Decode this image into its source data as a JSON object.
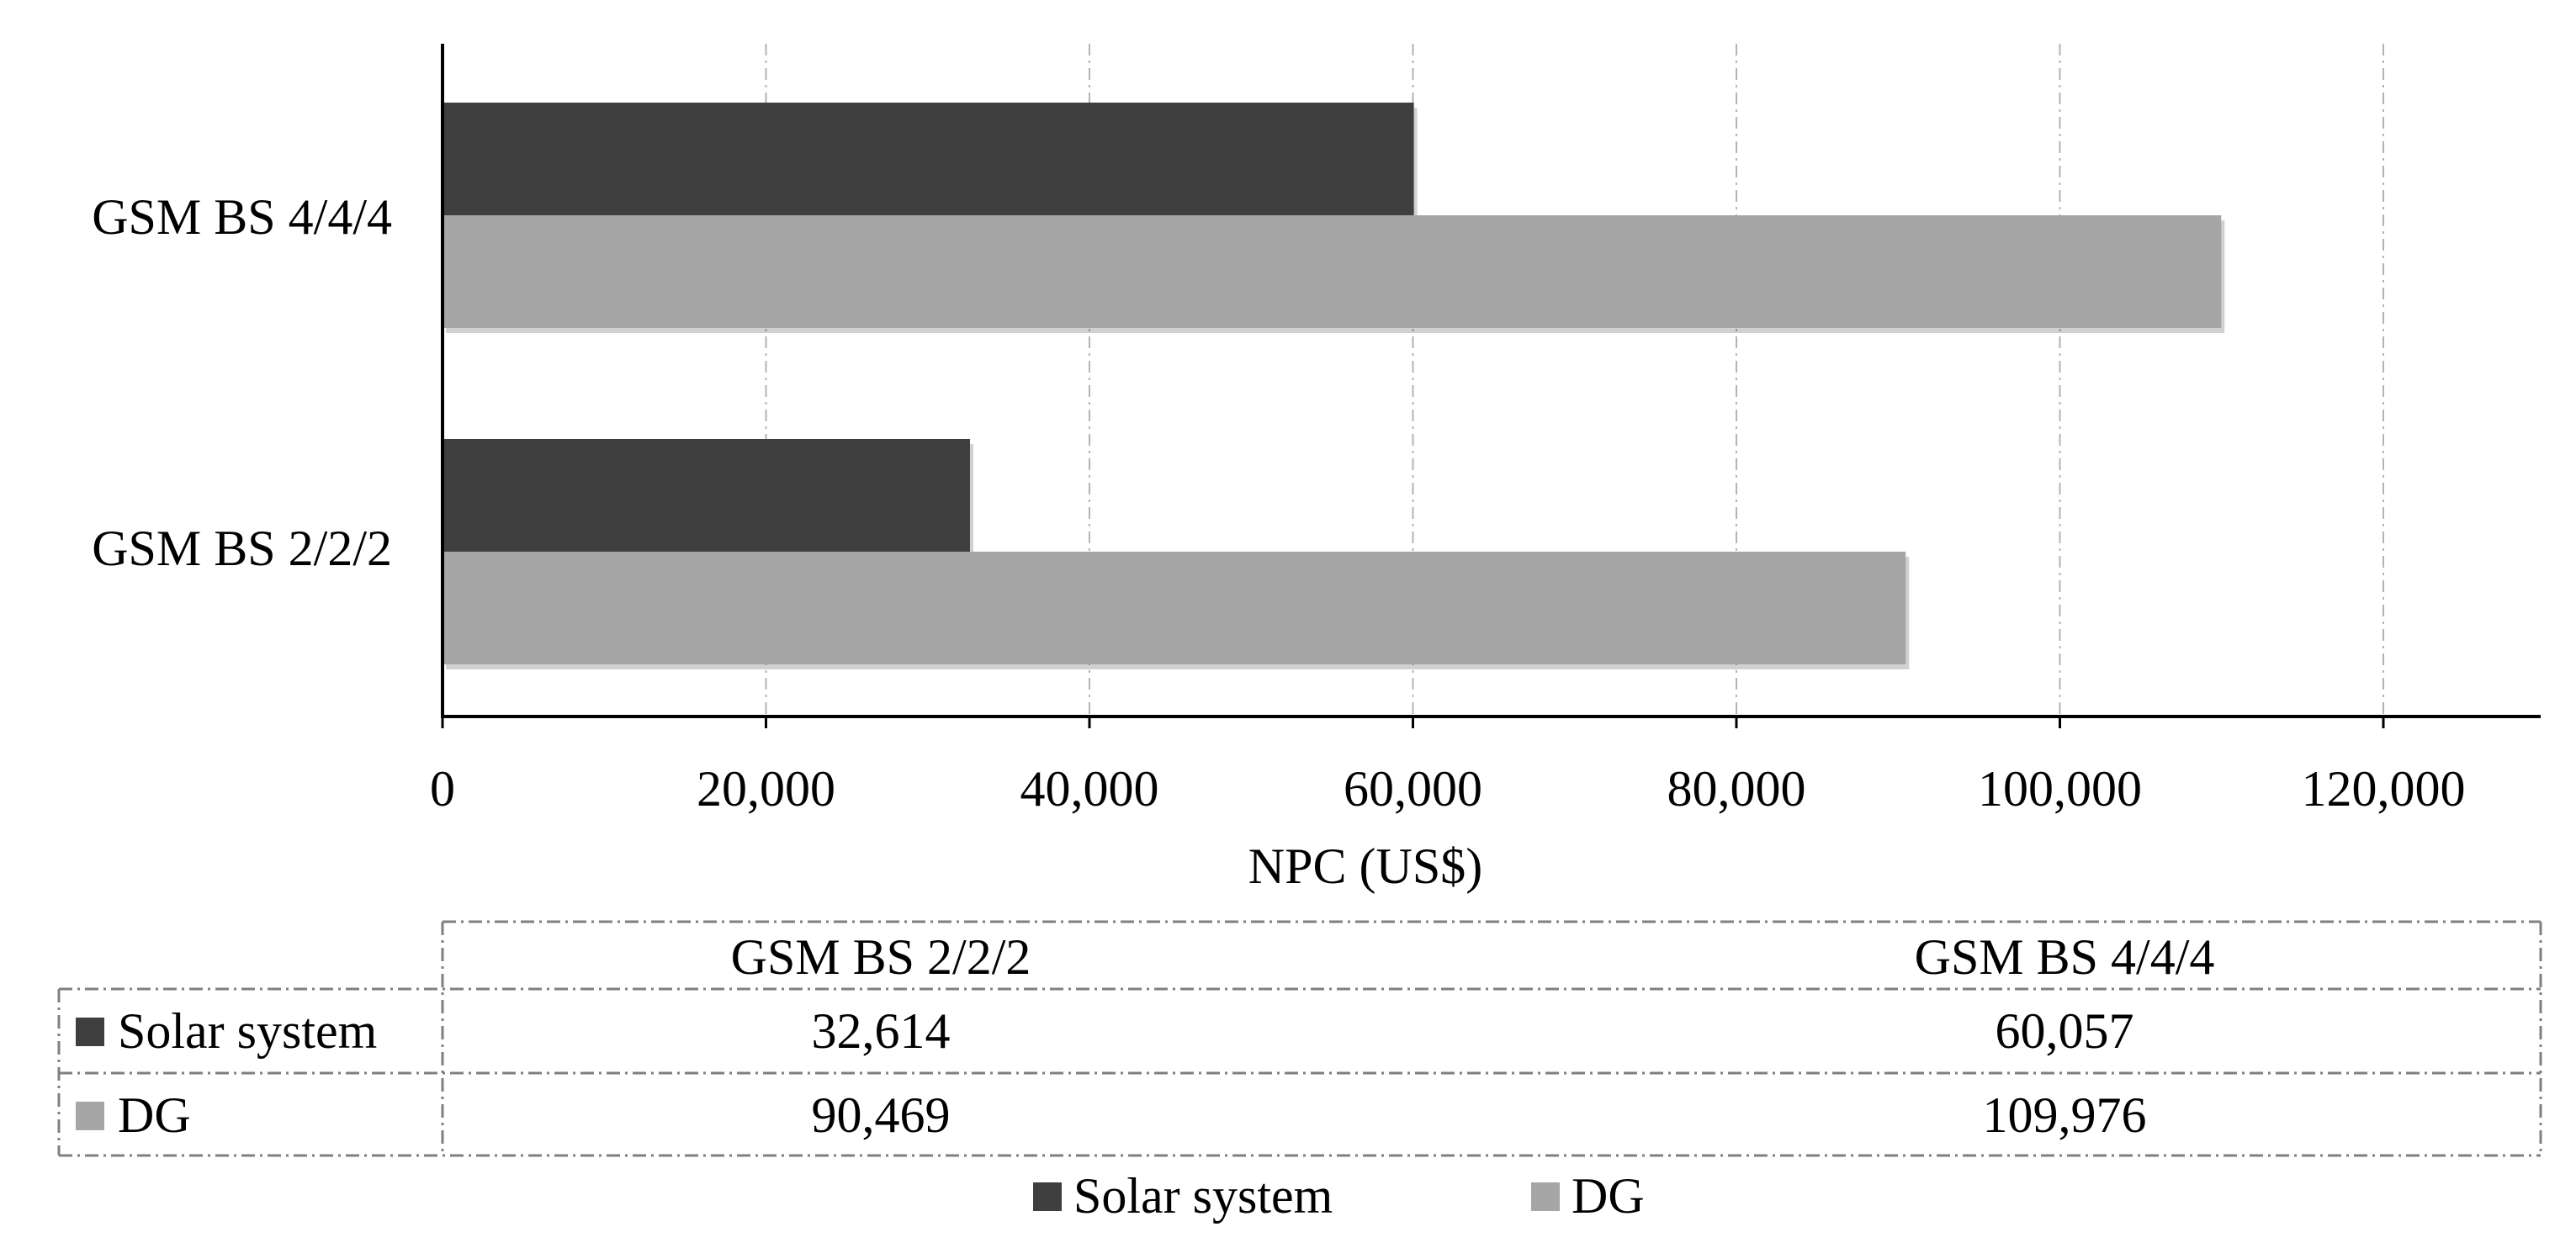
{
  "chart_data": {
    "type": "bar",
    "orientation": "horizontal",
    "title": "",
    "xlabel": "NPC (US$)",
    "ylabel": "",
    "categories": [
      "GSM BS 2/2/2",
      "GSM BS 4/4/4"
    ],
    "series": [
      {
        "name": "Solar system",
        "values": [
          32614,
          60057
        ],
        "color": "#3f3f3f"
      },
      {
        "name": "DG",
        "values": [
          90469,
          109976
        ],
        "color": "#a6a6a6"
      }
    ],
    "xlim": [
      0,
      130000
    ],
    "xticks": [
      0,
      20000,
      40000,
      60000,
      80000,
      100000,
      120000
    ],
    "xtick_labels": [
      "0",
      "20,000",
      "40,000",
      "60,000",
      "80,000",
      "100,000",
      "120,000"
    ],
    "grid": "vertical dashed",
    "data_table": {
      "headers": [
        "GSM BS 2/2/2",
        "GSM BS 4/4/4"
      ],
      "rows": [
        {
          "label": "Solar system",
          "values": [
            "32,614",
            "60,057"
          ]
        },
        {
          "label": "DG",
          "values": [
            "90,469",
            "109,976"
          ]
        }
      ]
    },
    "legend": {
      "position": "bottom",
      "entries": [
        "Solar system",
        "DG"
      ]
    }
  }
}
